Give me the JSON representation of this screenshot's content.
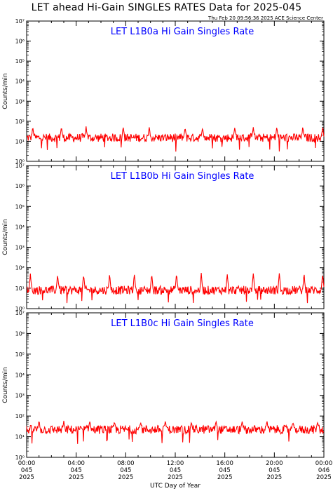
{
  "header": {
    "title": "LET ahead Hi-Gain SINGLES RATES Data for 2025-045",
    "timestamp": "Thu Feb 20 09:56:36 2025 ACE Science Center"
  },
  "colors": {
    "data": "#ff0000",
    "panel_title": "#0000ff",
    "axes": "#000000"
  },
  "chart_data": [
    {
      "type": "line",
      "title": "LET L1B0a Hi Gain Singles Rate",
      "ylabel": "Counts/min",
      "yscale": "log",
      "ylim": [
        1,
        10000000
      ],
      "ytick_labels": [
        "10⁰",
        "10¹",
        "10²",
        "10³",
        "10⁴",
        "10⁵",
        "10⁶",
        "10⁷"
      ],
      "xlim_hours": [
        0,
        24
      ],
      "series": [
        {
          "baseline": 15,
          "spike_peak": 50,
          "spike_hours": [
            0.5,
            2.8,
            4.8,
            7.8,
            9.9,
            12.8,
            14.2,
            16.8,
            18.3,
            20.2,
            22.3,
            23.9
          ]
        }
      ]
    },
    {
      "type": "line",
      "title": "LET L1B0b Hi Gain Singles Rate",
      "ylabel": "Counts/min",
      "yscale": "log",
      "ylim": [
        1,
        10000000
      ],
      "ytick_labels": [
        "10⁰",
        "10¹",
        "10²",
        "10³",
        "10⁴",
        "10⁵",
        "10⁶",
        "10⁷"
      ],
      "xlim_hours": [
        0,
        24
      ],
      "series": [
        {
          "baseline": 8,
          "spike_peak": 50,
          "spike_hours": [
            0.3,
            2.5,
            4.6,
            6.7,
            8.7,
            10.1,
            12.1,
            14.1,
            16.2,
            18.3,
            20.4,
            22.4,
            23.9
          ]
        }
      ]
    },
    {
      "type": "line",
      "title": "LET L1B0c Hi Gain Singles Rate",
      "ylabel": "Counts/min",
      "yscale": "log",
      "ylim": [
        1,
        10000000
      ],
      "ytick_labels": [
        "10⁰",
        "10¹",
        "10²",
        "10³",
        "10⁴",
        "10⁵",
        "10⁶",
        "10⁷"
      ],
      "xlim_hours": [
        0,
        24
      ],
      "series": [
        {
          "baseline": 22,
          "spike_peak": 55,
          "spike_hours": [
            1.0,
            3.0,
            5.1,
            7.1,
            9.2,
            11.2,
            13.3,
            15.3,
            17.4,
            19.4,
            21.5,
            23.5
          ]
        }
      ]
    }
  ],
  "xaxis": {
    "label": "UTC Day of Year",
    "ticks": [
      {
        "hour": 0,
        "lines": [
          "00:00",
          "045",
          "2025"
        ]
      },
      {
        "hour": 4,
        "lines": [
          "04:00",
          "045",
          "2025"
        ]
      },
      {
        "hour": 8,
        "lines": [
          "08:00",
          "045",
          "2025"
        ]
      },
      {
        "hour": 12,
        "lines": [
          "12:00",
          "045",
          "2025"
        ]
      },
      {
        "hour": 16,
        "lines": [
          "16:00",
          "045",
          "2025"
        ]
      },
      {
        "hour": 20,
        "lines": [
          "20:00",
          "045",
          "2025"
        ]
      },
      {
        "hour": 24,
        "lines": [
          "00:00",
          "046",
          "2025"
        ]
      }
    ]
  }
}
